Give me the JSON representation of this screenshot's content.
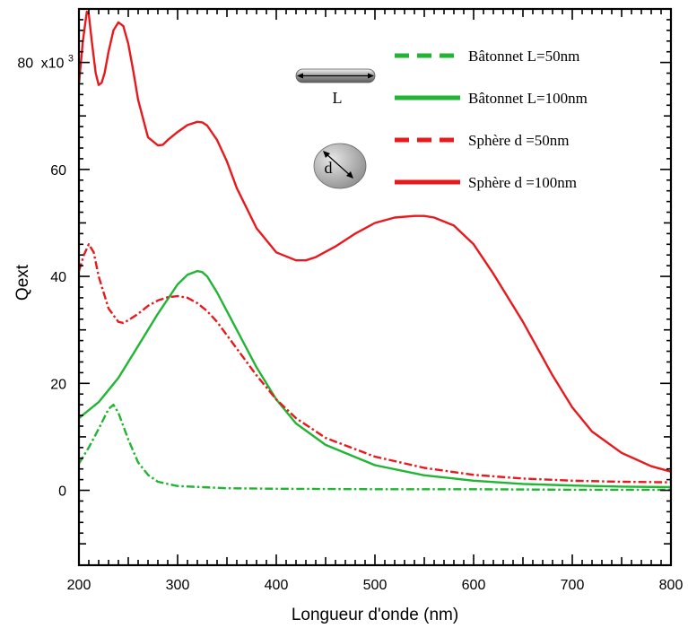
{
  "chart_data": {
    "type": "line",
    "xlabel": "Longueur d'onde (nm)",
    "ylabel": "Qext",
    "y_multiplier_label": "x10",
    "y_multiplier_exp": "3",
    "xlim": [
      200,
      800
    ],
    "ylim": [
      -14,
      90
    ],
    "x_ticks": [
      200,
      300,
      400,
      500,
      600,
      700,
      800
    ],
    "y_ticks": [
      0,
      20,
      40,
      60
    ],
    "y_top_tick": 80,
    "grid": false,
    "legend_position": "top-right",
    "inset": {
      "rod_label": "L",
      "sphere_label": "d"
    },
    "series": [
      {
        "name": "Bâtonnet L=50nm",
        "color": "#21b533",
        "style": "dashdot",
        "x": [
          200,
          210,
          220,
          230,
          235,
          240,
          250,
          260,
          270,
          280,
          300,
          350,
          400,
          500,
          600,
          700,
          800
        ],
        "y": [
          5,
          8,
          11.5,
          15.2,
          16,
          14.5,
          9.5,
          5.2,
          2.9,
          1.6,
          0.8,
          0.4,
          0.3,
          0.2,
          0.2,
          0.1,
          0.1
        ]
      },
      {
        "name": "Bâtonnet L=100nm",
        "color": "#21b533",
        "style": "solid",
        "x": [
          200,
          220,
          240,
          260,
          280,
          300,
          310,
          320,
          325,
          330,
          340,
          360,
          380,
          400,
          420,
          450,
          500,
          550,
          600,
          650,
          700,
          750,
          800
        ],
        "y": [
          13.5,
          16.5,
          21,
          27,
          33,
          38.5,
          40.3,
          41,
          40.8,
          40,
          37,
          30,
          23,
          17,
          12.5,
          8.5,
          4.7,
          2.8,
          1.8,
          1.2,
          0.9,
          0.7,
          0.6
        ]
      },
      {
        "name": "Sphère d =50nm",
        "color": "#e8191c",
        "style": "dashdot",
        "x": [
          200,
          205,
          210,
          215,
          220,
          230,
          240,
          245,
          250,
          260,
          270,
          280,
          290,
          300,
          310,
          320,
          330,
          340,
          360,
          380,
          400,
          420,
          450,
          500,
          550,
          600,
          650,
          700,
          750,
          800
        ],
        "y": [
          41,
          44,
          46,
          44.5,
          40,
          34,
          31.5,
          31.3,
          31.8,
          33,
          34.5,
          35.5,
          36.1,
          36.3,
          36,
          35,
          33.5,
          31.5,
          26.5,
          21.5,
          17,
          13.5,
          9.8,
          6.3,
          4.2,
          2.9,
          2.2,
          1.8,
          1.6,
          1.5
        ]
      },
      {
        "name": "Sphère d =100nm",
        "color": "#e8191c",
        "style": "solid",
        "x": [
          200,
          204,
          208,
          210,
          213,
          217,
          220,
          223,
          226,
          230,
          235,
          240,
          245,
          250,
          255,
          260,
          270,
          280,
          285,
          290,
          300,
          310,
          320,
          325,
          330,
          340,
          350,
          360,
          380,
          400,
          420,
          430,
          440,
          460,
          480,
          500,
          520,
          540,
          550,
          560,
          580,
          600,
          620,
          650,
          680,
          700,
          720,
          750,
          780,
          800
        ],
        "y": [
          76,
          84,
          89.5,
          89,
          84,
          78,
          75.8,
          76.2,
          78,
          82,
          86,
          87.5,
          86.8,
          83.5,
          78.5,
          73,
          66,
          64.5,
          64.6,
          65.5,
          67,
          68.3,
          68.9,
          68.8,
          68.2,
          65.5,
          61.5,
          56.5,
          49,
          44.5,
          43,
          43,
          43.6,
          45.6,
          48,
          50,
          51,
          51.3,
          51.3,
          51,
          49.5,
          46,
          40.5,
          31.5,
          21.5,
          15.5,
          11,
          7,
          4.5,
          3.5
        ]
      }
    ]
  }
}
